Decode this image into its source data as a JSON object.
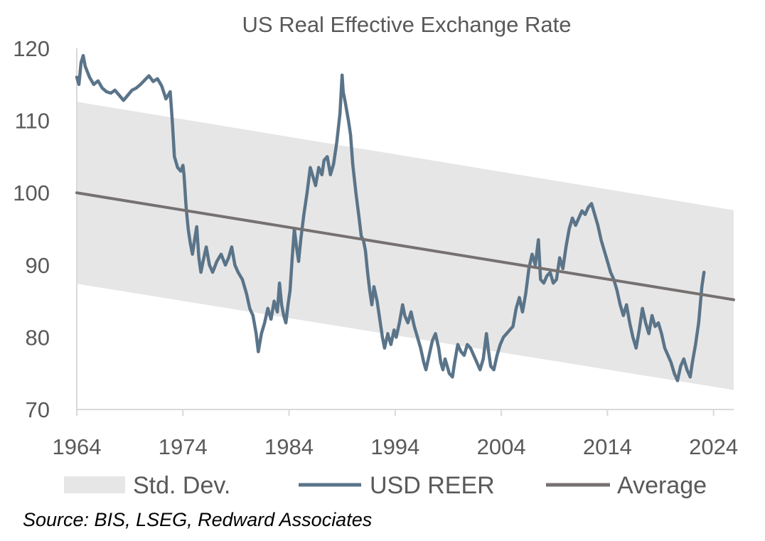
{
  "chart_data": {
    "type": "line",
    "title": "US Real Effective Exchange Rate",
    "xlabel": "",
    "ylabel": "",
    "xlim": [
      1964,
      2025.9
    ],
    "ylim": [
      70,
      120
    ],
    "x_ticks": [
      1964,
      1974,
      1984,
      1994,
      2004,
      2014,
      2024
    ],
    "y_ticks": [
      70,
      80,
      90,
      100,
      110,
      120
    ],
    "x_tick_labels": [
      "1964",
      "1974",
      "1984",
      "1994",
      "2004",
      "2014",
      "2024"
    ],
    "y_tick_labels": [
      "70",
      "80",
      "90",
      "100",
      "110",
      "120"
    ],
    "band": {
      "name": "Std. Dev.",
      "color": "#e7e6e6",
      "upper": [
        [
          1964,
          112.6
        ],
        [
          2025.9,
          97.6
        ]
      ],
      "lower": [
        [
          1964,
          87.4
        ],
        [
          2025.9,
          72.7
        ]
      ]
    },
    "series": [
      {
        "name": "USD REER",
        "color": "#5a7489",
        "points": [
          [
            1964.0,
            116.0
          ],
          [
            1964.2,
            115.0
          ],
          [
            1964.4,
            118.0
          ],
          [
            1964.6,
            119.0
          ],
          [
            1964.8,
            117.5
          ],
          [
            1965.2,
            116.0
          ],
          [
            1965.6,
            115.0
          ],
          [
            1966.0,
            115.5
          ],
          [
            1966.4,
            114.5
          ],
          [
            1966.8,
            114.0
          ],
          [
            1967.2,
            113.8
          ],
          [
            1967.6,
            114.2
          ],
          [
            1968.0,
            113.5
          ],
          [
            1968.4,
            112.8
          ],
          [
            1968.8,
            113.5
          ],
          [
            1969.2,
            114.2
          ],
          [
            1969.6,
            114.5
          ],
          [
            1970.0,
            115.0
          ],
          [
            1970.4,
            115.6
          ],
          [
            1970.8,
            116.2
          ],
          [
            1971.2,
            115.4
          ],
          [
            1971.6,
            115.8
          ],
          [
            1972.0,
            114.8
          ],
          [
            1972.4,
            113.0
          ],
          [
            1972.8,
            114.0
          ],
          [
            1973.0,
            110.0
          ],
          [
            1973.2,
            105.0
          ],
          [
            1973.5,
            103.5
          ],
          [
            1973.8,
            103.0
          ],
          [
            1974.0,
            103.8
          ],
          [
            1974.1,
            102.5
          ],
          [
            1974.3,
            98.0
          ],
          [
            1974.5,
            95.0
          ],
          [
            1974.7,
            93.0
          ],
          [
            1974.9,
            91.5
          ],
          [
            1975.1,
            93.5
          ],
          [
            1975.3,
            95.3
          ],
          [
            1975.5,
            91.0
          ],
          [
            1975.7,
            89.0
          ],
          [
            1975.9,
            90.5
          ],
          [
            1976.2,
            92.5
          ],
          [
            1976.5,
            90.0
          ],
          [
            1976.8,
            89.0
          ],
          [
            1977.2,
            90.5
          ],
          [
            1977.6,
            91.5
          ],
          [
            1978.0,
            90.0
          ],
          [
            1978.3,
            91.0
          ],
          [
            1978.6,
            92.5
          ],
          [
            1978.9,
            90.0
          ],
          [
            1979.2,
            89.0
          ],
          [
            1979.6,
            88.0
          ],
          [
            1980.0,
            86.0
          ],
          [
            1980.3,
            84.0
          ],
          [
            1980.6,
            83.0
          ],
          [
            1980.9,
            80.5
          ],
          [
            1981.1,
            78.0
          ],
          [
            1981.4,
            80.5
          ],
          [
            1981.7,
            82.0
          ],
          [
            1982.0,
            84.0
          ],
          [
            1982.3,
            82.5
          ],
          [
            1982.6,
            85.0
          ],
          [
            1982.9,
            83.5
          ],
          [
            1983.1,
            87.5
          ],
          [
            1983.3,
            84.5
          ],
          [
            1983.5,
            83.0
          ],
          [
            1983.7,
            82.0
          ],
          [
            1983.9,
            84.5
          ],
          [
            1984.1,
            86.5
          ],
          [
            1984.3,
            91.0
          ],
          [
            1984.5,
            95.0
          ],
          [
            1984.7,
            92.5
          ],
          [
            1984.9,
            90.5
          ],
          [
            1985.1,
            93.5
          ],
          [
            1985.4,
            97.0
          ],
          [
            1985.7,
            100.0
          ],
          [
            1986.0,
            103.5
          ],
          [
            1986.2,
            102.5
          ],
          [
            1986.5,
            101.0
          ],
          [
            1986.8,
            103.5
          ],
          [
            1987.1,
            102.5
          ],
          [
            1987.3,
            104.5
          ],
          [
            1987.6,
            105.0
          ],
          [
            1987.9,
            102.5
          ],
          [
            1988.2,
            104.0
          ],
          [
            1988.5,
            107.0
          ],
          [
            1988.8,
            111.0
          ],
          [
            1989.0,
            116.3
          ],
          [
            1989.1,
            114.0
          ],
          [
            1989.3,
            112.5
          ],
          [
            1989.6,
            110.0
          ],
          [
            1989.8,
            108.0
          ],
          [
            1990.0,
            104.0
          ],
          [
            1990.3,
            100.0
          ],
          [
            1990.6,
            96.5
          ],
          [
            1990.8,
            94.0
          ],
          [
            1991.0,
            93.5
          ],
          [
            1991.2,
            92.0
          ],
          [
            1991.4,
            89.0
          ],
          [
            1991.6,
            86.5
          ],
          [
            1991.8,
            84.5
          ],
          [
            1992.0,
            87.0
          ],
          [
            1992.3,
            85.0
          ],
          [
            1992.5,
            83.0
          ],
          [
            1992.8,
            80.0
          ],
          [
            1993.0,
            78.5
          ],
          [
            1993.3,
            80.5
          ],
          [
            1993.6,
            79.0
          ],
          [
            1993.9,
            81.0
          ],
          [
            1994.1,
            80.0
          ],
          [
            1994.4,
            82.0
          ],
          [
            1994.7,
            84.5
          ],
          [
            1994.9,
            83.0
          ],
          [
            1995.2,
            82.0
          ],
          [
            1995.5,
            83.5
          ],
          [
            1995.8,
            81.5
          ],
          [
            1996.1,
            80.0
          ],
          [
            1996.4,
            78.5
          ],
          [
            1996.7,
            76.5
          ],
          [
            1996.9,
            75.5
          ],
          [
            1997.2,
            77.5
          ],
          [
            1997.5,
            79.5
          ],
          [
            1997.8,
            80.5
          ],
          [
            1998.1,
            78.5
          ],
          [
            1998.3,
            76.5
          ],
          [
            1998.5,
            75.5
          ],
          [
            1998.7,
            77.0
          ],
          [
            1998.9,
            76.0
          ],
          [
            1999.1,
            75.0
          ],
          [
            1999.4,
            74.5
          ],
          [
            1999.6,
            76.5
          ],
          [
            1999.9,
            79.0
          ],
          [
            2000.2,
            78.0
          ],
          [
            2000.5,
            77.5
          ],
          [
            2000.8,
            79.0
          ],
          [
            2001.1,
            78.5
          ],
          [
            2001.4,
            77.5
          ],
          [
            2001.7,
            76.5
          ],
          [
            2002.0,
            75.5
          ],
          [
            2002.3,
            77.0
          ],
          [
            2002.6,
            80.5
          ],
          [
            2002.8,
            78.0
          ],
          [
            2003.0,
            76.0
          ],
          [
            2003.3,
            75.5
          ],
          [
            2003.6,
            77.5
          ],
          [
            2003.9,
            79.0
          ],
          [
            2004.2,
            80.0
          ],
          [
            2004.5,
            80.5
          ],
          [
            2004.8,
            81.0
          ],
          [
            2005.1,
            81.5
          ],
          [
            2005.4,
            84.0
          ],
          [
            2005.7,
            85.5
          ],
          [
            2006.0,
            83.5
          ],
          [
            2006.3,
            86.0
          ],
          [
            2006.6,
            89.5
          ],
          [
            2006.9,
            91.5
          ],
          [
            2007.2,
            90.0
          ],
          [
            2007.5,
            93.5
          ],
          [
            2007.7,
            88.0
          ],
          [
            2008.0,
            87.5
          ],
          [
            2008.3,
            88.5
          ],
          [
            2008.6,
            89.0
          ],
          [
            2008.9,
            87.5
          ],
          [
            2009.2,
            88.0
          ],
          [
            2009.5,
            91.0
          ],
          [
            2009.8,
            89.5
          ],
          [
            2010.1,
            92.5
          ],
          [
            2010.4,
            95.0
          ],
          [
            2010.7,
            96.5
          ],
          [
            2011.0,
            95.5
          ],
          [
            2011.3,
            96.5
          ],
          [
            2011.6,
            97.5
          ],
          [
            2011.9,
            97.0
          ],
          [
            2012.2,
            98.0
          ],
          [
            2012.5,
            98.5
          ],
          [
            2012.8,
            97.0
          ],
          [
            2013.1,
            95.5
          ],
          [
            2013.4,
            93.5
          ],
          [
            2013.7,
            92.0
          ],
          [
            2014.0,
            90.5
          ],
          [
            2014.3,
            89.0
          ],
          [
            2014.6,
            88.0
          ],
          [
            2014.9,
            86.5
          ],
          [
            2015.2,
            84.5
          ],
          [
            2015.5,
            83.0
          ],
          [
            2015.8,
            84.5
          ],
          [
            2016.1,
            82.0
          ],
          [
            2016.4,
            80.0
          ],
          [
            2016.7,
            78.5
          ],
          [
            2017.0,
            81.0
          ],
          [
            2017.3,
            84.0
          ],
          [
            2017.6,
            82.0
          ],
          [
            2017.9,
            80.5
          ],
          [
            2018.2,
            83.0
          ],
          [
            2018.5,
            81.5
          ],
          [
            2018.8,
            82.0
          ],
          [
            2019.1,
            80.5
          ],
          [
            2019.4,
            78.5
          ],
          [
            2019.7,
            77.5
          ],
          [
            2020.0,
            76.5
          ],
          [
            2020.3,
            75.0
          ],
          [
            2020.6,
            74.0
          ],
          [
            2020.9,
            76.0
          ],
          [
            2021.2,
            77.0
          ],
          [
            2021.5,
            75.5
          ],
          [
            2021.8,
            74.5
          ],
          [
            2022.0,
            76.5
          ],
          [
            2022.3,
            79.0
          ],
          [
            2022.6,
            82.0
          ],
          [
            2022.9,
            87.0
          ],
          [
            2023.1,
            89.0
          ]
        ]
      },
      {
        "name": "Average",
        "color": "#767171",
        "points": [
          [
            1964,
            100.0
          ],
          [
            2025.9,
            85.2
          ]
        ]
      }
    ],
    "legend": {
      "position": "bottom"
    }
  },
  "legend": {
    "band_label": "Std. Dev.",
    "reer_label": "USD REER",
    "avg_label": "Average"
  },
  "source": "Source: BIS, LSEG, Redward Associates"
}
